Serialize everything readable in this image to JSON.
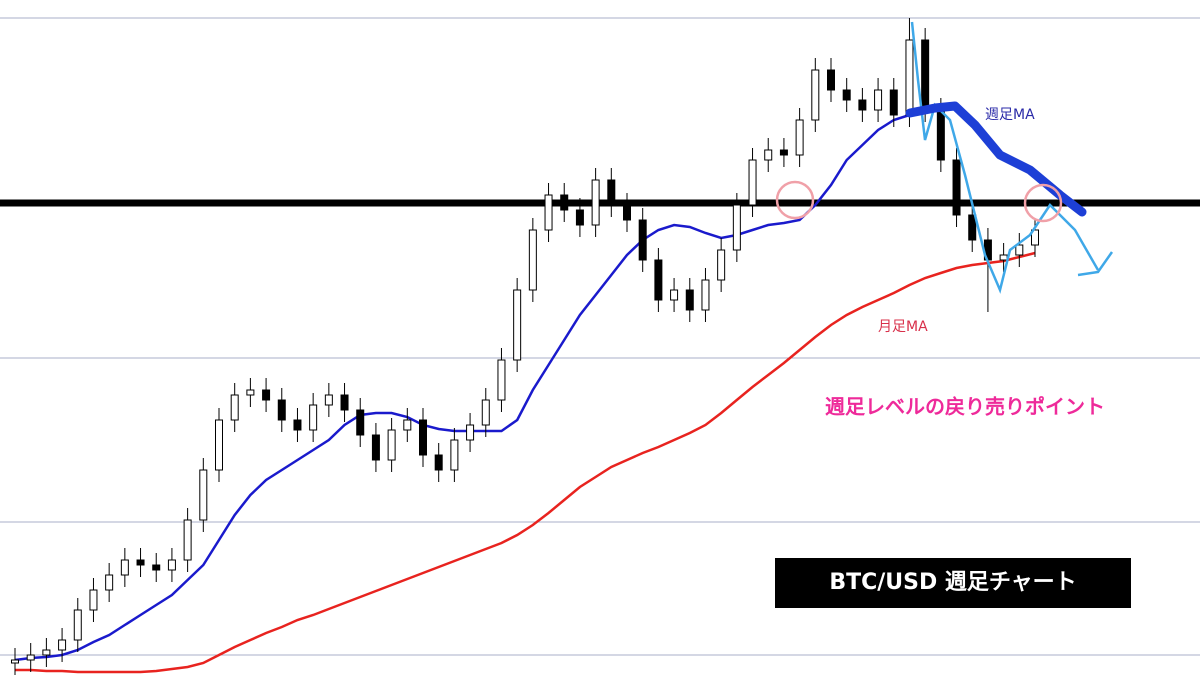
{
  "chart_data": {
    "type": "candlestick",
    "title": "BTC/USD 週足チャート",
    "annotation": "週足レベルの戻り売りポイント",
    "ylim": [
      0,
      675
    ],
    "yticks": [
      20,
      153,
      317,
      657
    ],
    "grid": true,
    "level": 472,
    "up_color": "#ffffff",
    "down_color": "#000000",
    "open": [
      12,
      15,
      20,
      25,
      35,
      65,
      85,
      100,
      115,
      110,
      105,
      115,
      155,
      205,
      255,
      280,
      285,
      275,
      255,
      245,
      270,
      280,
      265,
      240,
      215,
      245,
      255,
      220,
      205,
      235,
      250,
      275,
      315,
      385,
      445,
      480,
      465,
      450,
      495,
      470,
      455,
      415,
      375,
      385,
      365,
      395,
      425,
      470,
      515,
      525,
      520,
      555,
      605,
      585,
      575,
      565,
      585,
      560,
      635,
      565,
      515,
      460,
      435,
      415,
      420,
      430
    ],
    "high": [
      27,
      32,
      37,
      47,
      77,
      97,
      112,
      127,
      127,
      122,
      127,
      167,
      217,
      267,
      292,
      297,
      297,
      287,
      267,
      282,
      292,
      292,
      277,
      252,
      257,
      267,
      267,
      232,
      247,
      262,
      287,
      327,
      397,
      457,
      492,
      492,
      477,
      507,
      507,
      482,
      467,
      427,
      397,
      397,
      407,
      437,
      482,
      527,
      537,
      537,
      567,
      617,
      617,
      597,
      587,
      597,
      597,
      657,
      647,
      577,
      527,
      472,
      447,
      432,
      442,
      457
    ],
    "low": [
      0,
      3,
      8,
      13,
      23,
      53,
      73,
      88,
      98,
      93,
      93,
      103,
      143,
      193,
      243,
      268,
      263,
      243,
      233,
      233,
      258,
      253,
      228,
      203,
      203,
      233,
      208,
      193,
      193,
      223,
      238,
      263,
      303,
      373,
      433,
      453,
      438,
      438,
      458,
      443,
      403,
      363,
      363,
      353,
      353,
      383,
      413,
      458,
      503,
      508,
      508,
      543,
      573,
      563,
      553,
      553,
      548,
      548,
      553,
      503,
      448,
      423,
      363,
      403,
      408,
      418
    ],
    "close": [
      15,
      20,
      25,
      35,
      65,
      85,
      100,
      115,
      110,
      105,
      115,
      155,
      205,
      255,
      280,
      285,
      275,
      255,
      245,
      270,
      280,
      265,
      240,
      215,
      245,
      255,
      220,
      205,
      235,
      250,
      275,
      315,
      385,
      445,
      480,
      465,
      450,
      495,
      470,
      455,
      415,
      375,
      385,
      365,
      395,
      425,
      470,
      515,
      525,
      520,
      555,
      605,
      585,
      575,
      565,
      585,
      560,
      635,
      565,
      515,
      460,
      435,
      415,
      420,
      430,
      445
    ],
    "series": [
      {
        "name": "週足MA",
        "color": "#1a1acc",
        "values": [
          15,
          17,
          18,
          20,
          25,
          33,
          40,
          50,
          60,
          70,
          80,
          95,
          110,
          135,
          160,
          180,
          195,
          205,
          215,
          225,
          235,
          250,
          260,
          262,
          262,
          258,
          250,
          246,
          244,
          244,
          244,
          244,
          255,
          285,
          310,
          335,
          360,
          380,
          400,
          420,
          435,
          445,
          450,
          448,
          442,
          437,
          440,
          445,
          450,
          452,
          455,
          470,
          490,
          515,
          530,
          545,
          555,
          560,
          null,
          null,
          null,
          null,
          null,
          null,
          null,
          null
        ]
      },
      {
        "name": "月足MA",
        "color": "#e8231f",
        "values": [
          5,
          5,
          4,
          4,
          3,
          3,
          3,
          3,
          3,
          4,
          6,
          8,
          12,
          20,
          28,
          35,
          42,
          48,
          55,
          60,
          66,
          72,
          78,
          84,
          90,
          96,
          102,
          108,
          114,
          120,
          126,
          132,
          140,
          150,
          162,
          175,
          188,
          198,
          208,
          215,
          222,
          228,
          235,
          242,
          250,
          262,
          275,
          288,
          300,
          312,
          325,
          338,
          350,
          360,
          368,
          375,
          382,
          390,
          397,
          402,
          407,
          410,
          412,
          414,
          418,
          422
        ]
      }
    ]
  }
}
